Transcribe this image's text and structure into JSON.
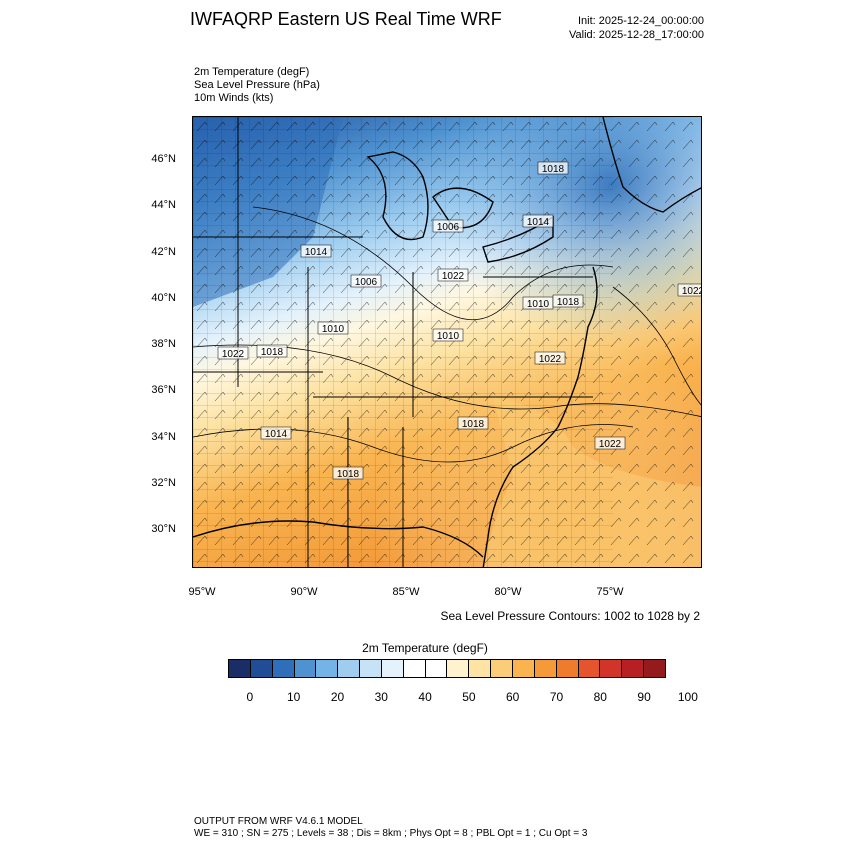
{
  "header": {
    "title": "IWFAQRP Eastern US Real Time WRF",
    "init": "Init: 2025-12-24_00:00:00",
    "valid": "Valid: 2025-12-28_17:00:00"
  },
  "fields": {
    "line1": "2m Temperature   (degF)",
    "line2": "Sea Level Pressure   (hPa)",
    "line3": "10m Winds   (kts)"
  },
  "map": {
    "lat_labels": [
      "46°N",
      "44°N",
      "42°N",
      "40°N",
      "38°N",
      "36°N",
      "34°N",
      "32°N",
      "30°N"
    ],
    "lon_labels": [
      "95°W",
      "90°W",
      "85°W",
      "80°W",
      "75°W"
    ],
    "pressure_labels": [
      "1018",
      "1014",
      "1006",
      "1014",
      "1006",
      "1022",
      "1010",
      "1010",
      "1022",
      "1018",
      "1010",
      "1022",
      "1014",
      "1018",
      "1018",
      "1022",
      "1018",
      "1022"
    ],
    "colors": {
      "cold": "#1f4e9c",
      "cool": "#73b6e6",
      "mild": "#ffffff",
      "warm": "#fcd08a",
      "hot": "#f39a3a"
    }
  },
  "contour_note": "Sea Level Pressure Contours: 1002 to 1028 by 2",
  "colorbar": {
    "title": "2m Temperature   (degF)",
    "ticks": [
      "0",
      "10",
      "20",
      "30",
      "40",
      "50",
      "60",
      "70",
      "80",
      "90",
      "100"
    ],
    "colors": [
      "#1b2d66",
      "#214c96",
      "#2f6fb9",
      "#4f92d0",
      "#74b3e5",
      "#9ecdf0",
      "#c5e2f7",
      "#e4f2fc",
      "#ffffff",
      "#ffffff",
      "#fff2cf",
      "#fde3a4",
      "#fccd79",
      "#f9b450",
      "#f59a38",
      "#ef7b2c",
      "#e5542c",
      "#d1352a",
      "#b71f25",
      "#951a1e"
    ]
  },
  "footer": {
    "line1": "OUTPUT FROM WRF V4.6.1 MODEL",
    "line2": "WE = 310 ; SN = 275 ; Levels = 38 ; Dis = 8km ; Phys Opt = 8 ; PBL Opt = 1 ; Cu Opt = 3"
  }
}
